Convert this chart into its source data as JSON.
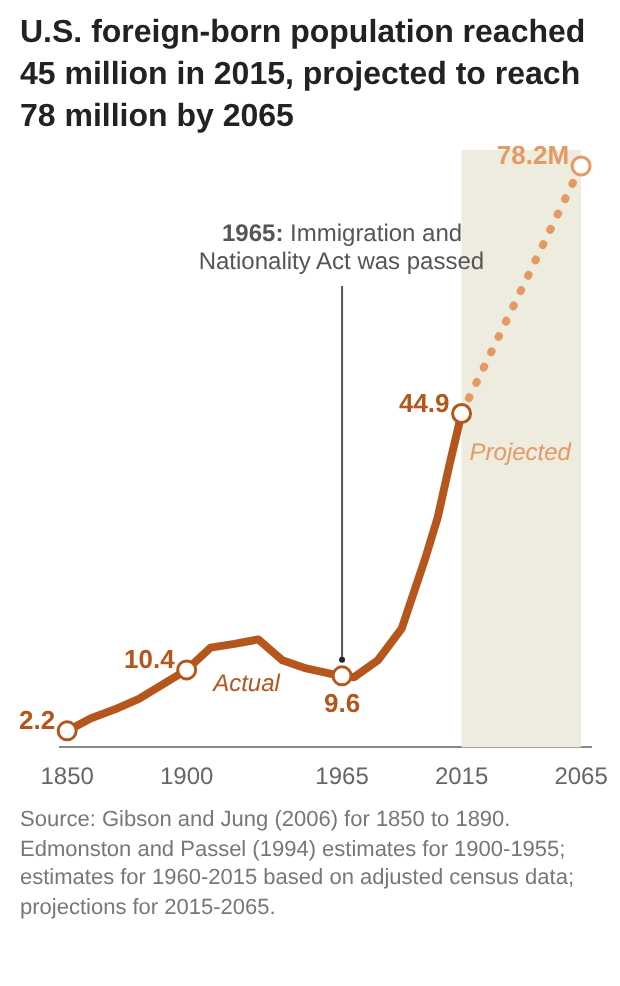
{
  "chart_data": {
    "type": "line",
    "title": "U.S. foreign-born population reached 45 million in 2015, projected to reach 78 million by 2065",
    "tick_labels": "x",
    "xlim": [
      1847,
      2069
    ],
    "xticks": [
      1850,
      1900,
      1965,
      2015,
      2065
    ],
    "grid": false,
    "legend": false,
    "series": [
      {
        "name": "Actual",
        "color": "#b5561c",
        "line_style": "solid",
        "x": [
          1850,
          1860,
          1870,
          1880,
          1900,
          1910,
          1920,
          1930,
          1940,
          1950,
          1960,
          1965,
          1970,
          1980,
          1990,
          2000,
          2005,
          2010,
          2015
        ],
        "values": [
          2.2,
          3.9,
          5.1,
          6.5,
          10.4,
          13.4,
          13.9,
          14.5,
          11.7,
          10.6,
          9.9,
          9.6,
          9.4,
          11.7,
          16.0,
          25.6,
          30.9,
          38.1,
          44.9
        ],
        "value_labels": [
          "2.2",
          null,
          null,
          null,
          "10.4",
          null,
          null,
          null,
          null,
          null,
          null,
          "9.6",
          null,
          null,
          null,
          null,
          null,
          null,
          "44.9"
        ]
      },
      {
        "name": "Projected",
        "color": "#e59a63",
        "line_style": "dotted",
        "x": [
          2015,
          2065
        ],
        "values": [
          44.9,
          78.2
        ],
        "value_labels": [
          null,
          "78.2M"
        ]
      }
    ],
    "bands": [
      {
        "axis": "x",
        "from": 2015,
        "to": 2065,
        "color": "#eeebdf"
      }
    ],
    "annotations": [
      {
        "text": "1965: Immigration and Nationality Act was passed",
        "x": 1965,
        "y": 9.6
      },
      "Source: Gibson and Jung (2006) for 1850 to 1890. Edmonston and Passel (1994) estimates for 1900-1955; estimates for 1960-2015 based on adjusted census data; projections for 2015-2065."
    ]
  }
}
